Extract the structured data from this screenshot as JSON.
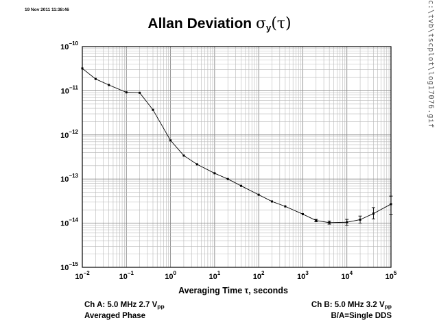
{
  "timestamp": "19 Nov 2011 11:38:46",
  "side_label": "c:\\tvb\\tscplot\\log17076.gif",
  "title": {
    "text": "Allan Deviation ",
    "symbol": "σ",
    "subscript": "y",
    "arg": "(τ)"
  },
  "footer": {
    "left": {
      "line1_prefix": "Ch A: 5.0 MHz 2.7 V",
      "line1_sub": "pp",
      "line2": "Averaged Phase"
    },
    "right": {
      "line1_prefix": "Ch B: 5.0 MHz 3.2 V",
      "line1_sub": "pp",
      "line2": "B/A=Single DDS"
    }
  },
  "chart_data": {
    "type": "line",
    "title": "Allan Deviation σy(τ)",
    "xlabel": "Averaging Time τ, seconds",
    "ylabel": "",
    "xscale": "log",
    "yscale": "log",
    "xlim": [
      0.01,
      100000
    ],
    "ylim": [
      1e-15,
      1e-10
    ],
    "xticks": [
      0.01,
      0.1,
      1,
      10,
      100,
      1000,
      10000,
      100000
    ],
    "yticks": [
      1e-15,
      1e-14,
      1e-13,
      1e-12,
      1e-11,
      1e-10
    ],
    "xtick_labels": [
      [
        "10",
        "−2"
      ],
      [
        "10",
        "−1"
      ],
      [
        "10",
        "0"
      ],
      [
        "10",
        "1"
      ],
      [
        "10",
        "2"
      ],
      [
        "10",
        "3"
      ],
      [
        "10",
        "4"
      ],
      [
        "10",
        "5"
      ]
    ],
    "ytick_labels": [
      [
        "10",
        "−15"
      ],
      [
        "10",
        "−14"
      ],
      [
        "10",
        "−13"
      ],
      [
        "10",
        "−12"
      ],
      [
        "10",
        "−11"
      ],
      [
        "10",
        "−10"
      ]
    ],
    "grid": true,
    "series": [
      {
        "x": [
          0.01,
          0.02,
          0.04,
          0.1,
          0.2,
          0.4,
          1,
          2,
          4,
          10,
          20,
          40,
          100,
          200,
          400,
          1000,
          2000,
          4000,
          10000,
          20000,
          40000,
          100000
        ],
        "y": [
          3.2e-11,
          1.85e-11,
          1.35e-11,
          9.2e-12,
          9e-12,
          3.7e-12,
          7.5e-13,
          3.4e-13,
          2.15e-13,
          1.35e-13,
          1e-13,
          7e-14,
          4.4e-14,
          3.1e-14,
          2.4e-14,
          1.6e-14,
          1.15e-14,
          1.03e-14,
          1.05e-14,
          1.2e-14,
          1.65e-14,
          2.7e-14
        ],
        "yerr_low": [
          3.15e-11,
          1.82e-11,
          1.33e-11,
          9.1e-12,
          8.9e-12,
          3.65e-12,
          7.4e-13,
          3.35e-13,
          2.1e-13,
          1.32e-13,
          9.8e-14,
          6.8e-14,
          4.25e-14,
          2.95e-14,
          2.3e-14,
          1.52e-14,
          1.08e-14,
          9.5e-15,
          9e-15,
          1e-14,
          1.25e-14,
          1.6e-14
        ],
        "yerr_high": [
          3.25e-11,
          1.88e-11,
          1.37e-11,
          9.3e-12,
          9.1e-12,
          3.75e-12,
          7.6e-13,
          3.45e-13,
          2.2e-13,
          1.38e-13,
          1.02e-13,
          7.2e-14,
          4.55e-14,
          3.25e-14,
          2.5e-14,
          1.68e-14,
          1.22e-14,
          1.12e-14,
          1.22e-14,
          1.45e-14,
          2.25e-14,
          4.1e-14
        ]
      }
    ]
  }
}
